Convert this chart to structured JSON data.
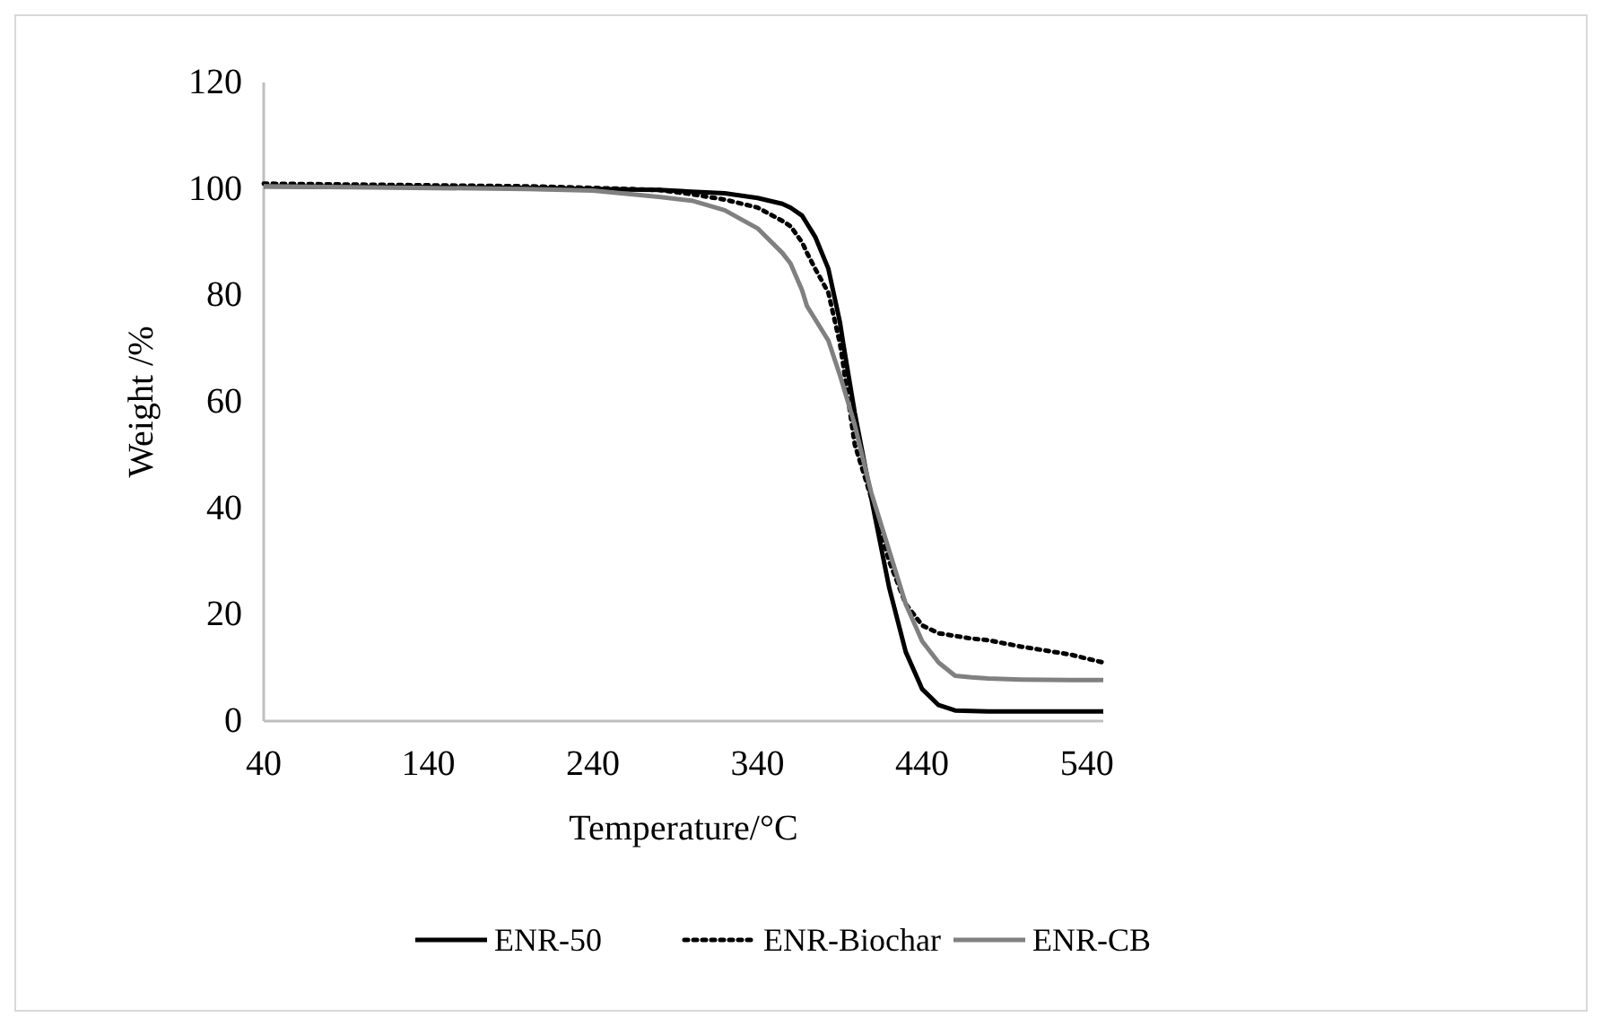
{
  "chart_data": {
    "type": "line",
    "xlabel": "Temperature/°C",
    "ylabel": "Weight /%",
    "x": [
      40,
      200,
      240,
      280,
      300,
      320,
      340,
      355,
      360,
      367,
      370,
      375,
      383,
      390,
      392,
      399,
      409,
      420,
      430,
      440,
      450,
      460,
      470,
      480,
      500,
      530,
      550
    ],
    "xlim": [
      40,
      550
    ],
    "xticks": [
      40,
      140,
      240,
      340,
      440,
      540
    ],
    "ylim": [
      0,
      120
    ],
    "yticks": [
      0,
      20,
      40,
      60,
      80,
      100,
      120
    ],
    "grid": false,
    "legend": "bottom",
    "marker": "none",
    "series": [
      {
        "name": "ENR-50",
        "color": "#000000",
        "line_style": "solid",
        "values": [
          100.5,
          100.2,
          100,
          99.8,
          99.5,
          99.2,
          98.3,
          97.2,
          96.5,
          95,
          93.5,
          91,
          85,
          75,
          71,
          58,
          42,
          25,
          13,
          6,
          3,
          2,
          1.9,
          1.8,
          1.8,
          1.8,
          1.8
        ]
      },
      {
        "name": "ENR-Biochar",
        "color": "#000000",
        "line_style": "dotted",
        "values": [
          101,
          100.5,
          100.2,
          99.8,
          99,
          98,
          96.5,
          94,
          93,
          90,
          88,
          85,
          80.5,
          71,
          67,
          52,
          42,
          30,
          22,
          18,
          16.5,
          16,
          15.5,
          15.2,
          14,
          12.5,
          11
        ]
      },
      {
        "name": "ENR-CB",
        "color": "#808080",
        "line_style": "solid",
        "values": [
          100.5,
          100,
          99.7,
          98.5,
          97.8,
          96,
          92.6,
          88,
          86,
          81,
          78,
          75.5,
          71.5,
          65,
          63,
          55.7,
          43,
          32,
          22,
          15,
          11,
          8.5,
          8.2,
          8,
          7.8,
          7.7,
          7.7
        ]
      }
    ]
  }
}
